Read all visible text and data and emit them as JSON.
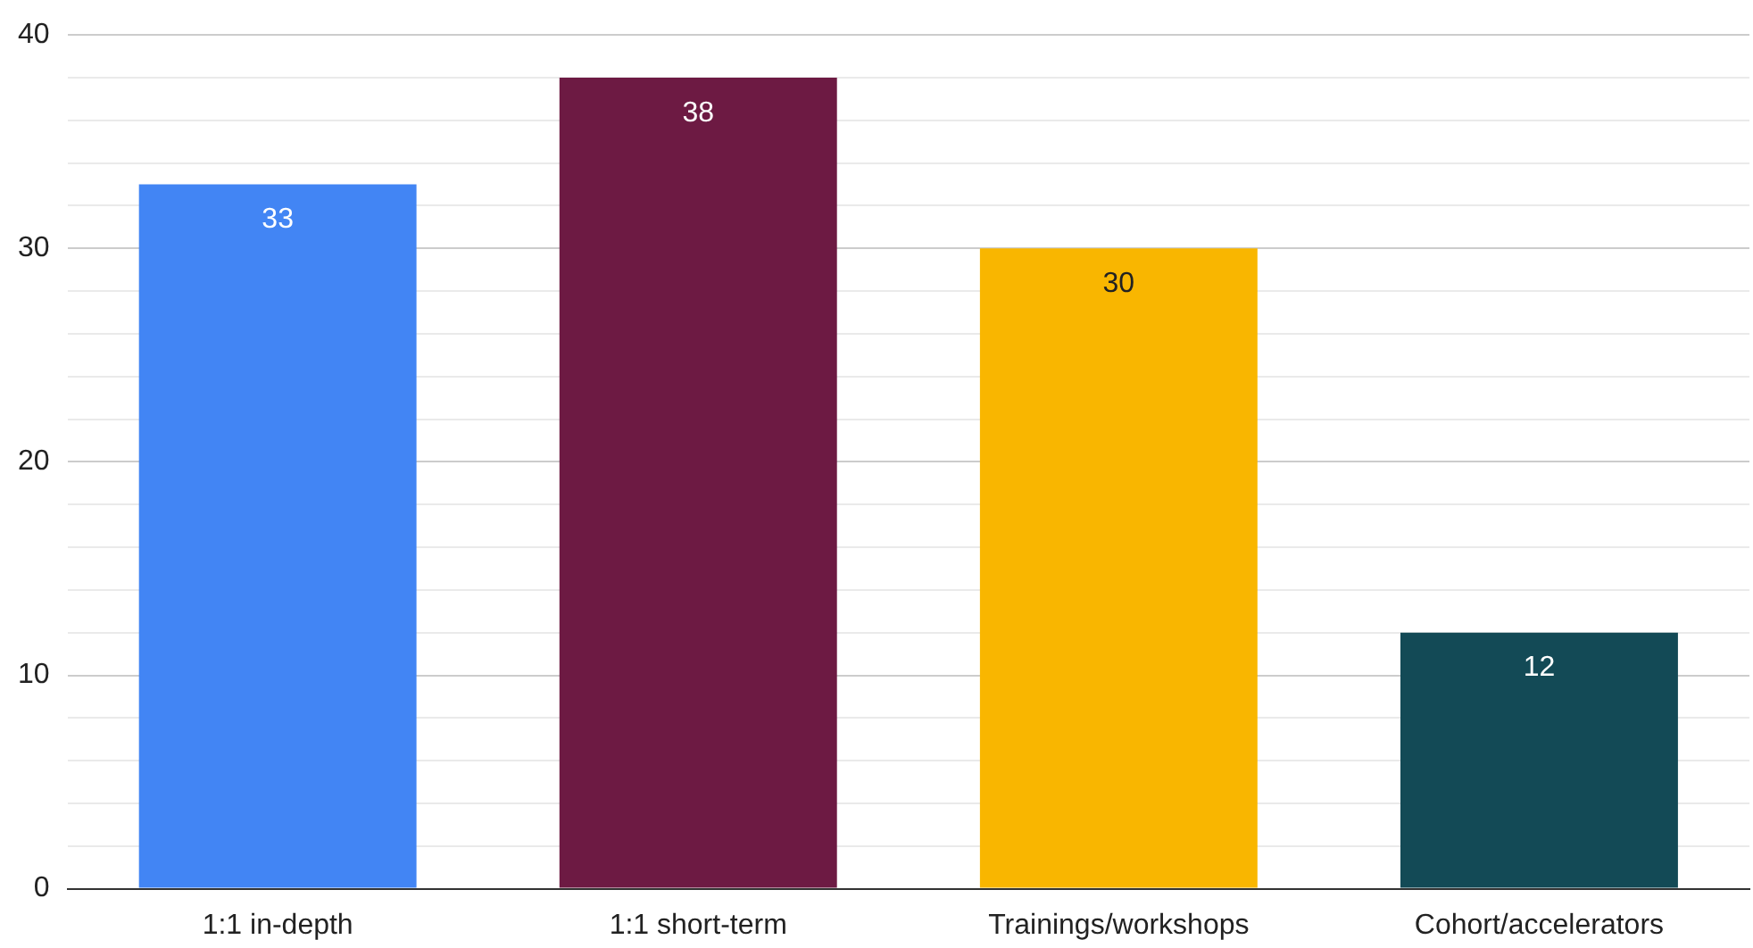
{
  "chart_data": {
    "type": "bar",
    "categories": [
      "1:1 in-depth",
      "1:1 short-term",
      "Trainings/workshops",
      "Cohort/accelerators"
    ],
    "values": [
      33,
      38,
      30,
      12
    ],
    "colors": [
      "#4285f4",
      "#6d1a43",
      "#f9b600",
      "#134a56"
    ],
    "ylim": [
      0,
      40
    ],
    "yticks": [
      0,
      {
        "value": 2,
        "label": null
      },
      {
        "value": 4,
        "label": null
      },
      {
        "value": 6,
        "label": null
      },
      {
        "value": 8,
        "label": null
      },
      10,
      {
        "value": 12,
        "label": null
      },
      {
        "value": 14,
        "label": null
      },
      {
        "value": 16,
        "label": null
      },
      {
        "value": 18,
        "label": null
      },
      20,
      {
        "value": 22,
        "label": null
      },
      {
        "value": 24,
        "label": null
      },
      {
        "value": 26,
        "label": null
      },
      {
        "value": 28,
        "label": null
      },
      30,
      {
        "value": 32,
        "label": null
      },
      {
        "value": 34,
        "label": null
      },
      {
        "value": 36,
        "label": null
      },
      {
        "value": 38,
        "label": null
      },
      40
    ],
    "grid": true,
    "data_labels": true
  }
}
